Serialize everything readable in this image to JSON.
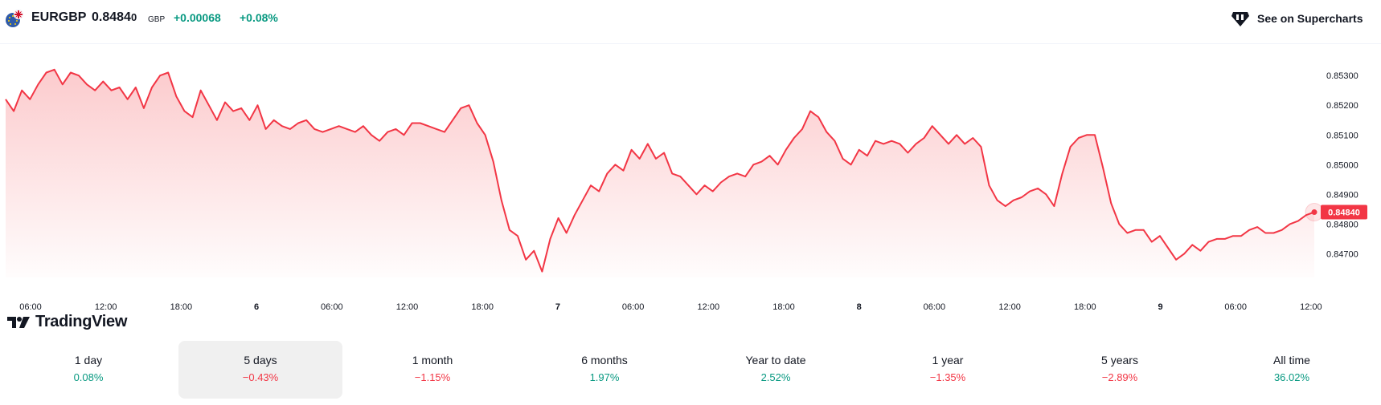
{
  "header": {
    "symbol": "EURGBP",
    "price_main": "0.8484",
    "price_last": "0",
    "currency": "GBP",
    "change": "+0.00068",
    "change_percent": "+0.08%",
    "flag_icon": "eu-gb-flag-icon",
    "superchart_icon": "tradingview-supercharts-icon",
    "superchart_label": "See on Supercharts"
  },
  "logo": {
    "text": "TradingView",
    "icon": "tradingview-logo-icon"
  },
  "colors": {
    "line": "#f23645",
    "positive": "#089981",
    "negative": "#f23645",
    "area_top": "#fccbcd",
    "active_tab_bg": "#f0f0f0"
  },
  "chart_data": {
    "type": "area",
    "x_ticks": [
      "06:00",
      "12:00",
      "18:00",
      "6",
      "06:00",
      "12:00",
      "18:00",
      "7",
      "06:00",
      "12:00",
      "18:00",
      "8",
      "06:00",
      "12:00",
      "18:00",
      "9",
      "06:00",
      "12:00"
    ],
    "y_ticks": [
      "0.85300",
      "0.85200",
      "0.85100",
      "0.85000",
      "0.84900",
      "0.84800",
      "0.84700"
    ],
    "ylim": [
      0.8462,
      0.8536
    ],
    "last_price_label": "0.84840",
    "series": [
      {
        "values": [
          0.8522,
          0.8518,
          0.8525,
          0.8522,
          0.8527,
          0.8531,
          0.8532,
          0.8527,
          0.8531,
          0.853,
          0.8527,
          0.8525,
          0.8528,
          0.8525,
          0.8526,
          0.8522,
          0.8526,
          0.8519,
          0.8526,
          0.853,
          0.8531,
          0.8523,
          0.8518,
          0.8516,
          0.8525,
          0.852,
          0.8515,
          0.8521,
          0.8518,
          0.8519,
          0.8515,
          0.852,
          0.8512,
          0.8515,
          0.8513,
          0.8512,
          0.8514,
          0.8515,
          0.8512,
          0.8511,
          0.8512,
          0.8513,
          0.8512,
          0.8511,
          0.8513,
          0.851,
          0.8508,
          0.8511,
          0.8512,
          0.851,
          0.8514,
          0.8514,
          0.8513,
          0.8512,
          0.8511,
          0.8515,
          0.8519,
          0.852,
          0.8514,
          0.851,
          0.8501,
          0.8488,
          0.8478,
          0.8476,
          0.8468,
          0.8471,
          0.8464,
          0.8475,
          0.8482,
          0.8477,
          0.8483,
          0.8488,
          0.8493,
          0.8491,
          0.8497,
          0.85,
          0.8498,
          0.8505,
          0.8502,
          0.8507,
          0.8502,
          0.8504,
          0.8497,
          0.8496,
          0.8493,
          0.849,
          0.8493,
          0.8491,
          0.8494,
          0.8496,
          0.8497,
          0.8496,
          0.85,
          0.8501,
          0.8503,
          0.85,
          0.8505,
          0.8509,
          0.8512,
          0.8518,
          0.8516,
          0.8511,
          0.8508,
          0.8502,
          0.85,
          0.8505,
          0.8503,
          0.8508,
          0.8507,
          0.8508,
          0.8507,
          0.8504,
          0.8507,
          0.8509,
          0.8513,
          0.851,
          0.8507,
          0.851,
          0.8507,
          0.8509,
          0.8506,
          0.8493,
          0.8488,
          0.8486,
          0.8488,
          0.8489,
          0.8491,
          0.8492,
          0.849,
          0.8486,
          0.8497,
          0.8506,
          0.8509,
          0.851,
          0.851,
          0.8499,
          0.8487,
          0.848,
          0.8477,
          0.8478,
          0.8478,
          0.8474,
          0.8476,
          0.8472,
          0.8468,
          0.847,
          0.8473,
          0.8471,
          0.8474,
          0.8475,
          0.8475,
          0.8476,
          0.8476,
          0.8478,
          0.8479,
          0.8477,
          0.8477,
          0.8478,
          0.848,
          0.8481,
          0.8483,
          0.8484
        ]
      }
    ]
  },
  "periods": [
    {
      "label": "1 day",
      "value": "0.08%",
      "direction": "pos"
    },
    {
      "label": "5 days",
      "value": "−0.43%",
      "direction": "neg"
    },
    {
      "label": "1 month",
      "value": "−1.15%",
      "direction": "neg"
    },
    {
      "label": "6 months",
      "value": "1.97%",
      "direction": "pos"
    },
    {
      "label": "Year to date",
      "value": "2.52%",
      "direction": "pos"
    },
    {
      "label": "1 year",
      "value": "−1.35%",
      "direction": "neg"
    },
    {
      "label": "5 years",
      "value": "−2.89%",
      "direction": "neg"
    },
    {
      "label": "All time",
      "value": "36.02%",
      "direction": "pos"
    }
  ],
  "active_period": "5 days"
}
